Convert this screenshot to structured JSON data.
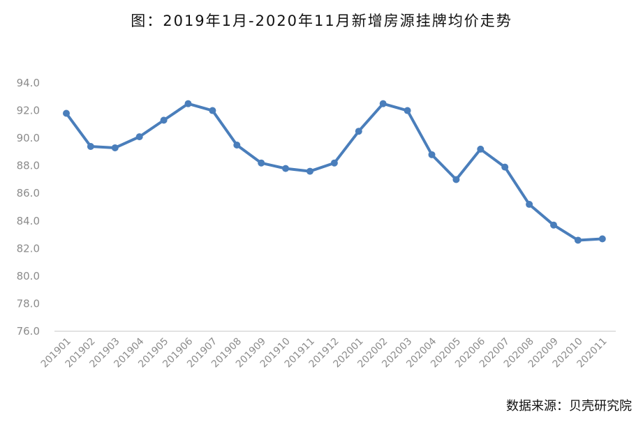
{
  "title": "图：2019年1月-2020年11月新增房源挂牌均价走势",
  "source": "数据来源：贝壳研究院",
  "colors": {
    "line": "#4a7ebb",
    "axis": "#d9d9d9",
    "tick_text": "#8c8c8c"
  },
  "chart_data": {
    "type": "line",
    "title": "图：2019年1月-2020年11月新增房源挂牌均价走势",
    "xlabel": "",
    "ylabel": "",
    "ylim": [
      76.0,
      94.0
    ],
    "yticks": [
      "76.0",
      "78.0",
      "80.0",
      "82.0",
      "84.0",
      "86.0",
      "88.0",
      "90.0",
      "92.0",
      "94.0"
    ],
    "grid": false,
    "categories": [
      "201901",
      "201902",
      "201903",
      "201904",
      "201905",
      "201906",
      "201907",
      "201908",
      "201909",
      "201910",
      "201911",
      "201912",
      "202001",
      "202002",
      "202003",
      "202004",
      "202005",
      "202006",
      "202007",
      "202008",
      "202009",
      "202010",
      "202011"
    ],
    "series": [
      {
        "values": [
          91.8,
          89.4,
          89.3,
          90.1,
          91.3,
          92.5,
          92.0,
          89.5,
          88.2,
          87.8,
          87.6,
          88.2,
          90.5,
          92.5,
          92.0,
          88.8,
          87.0,
          89.2,
          87.9,
          85.2,
          83.7,
          82.6,
          82.7
        ]
      }
    ]
  }
}
